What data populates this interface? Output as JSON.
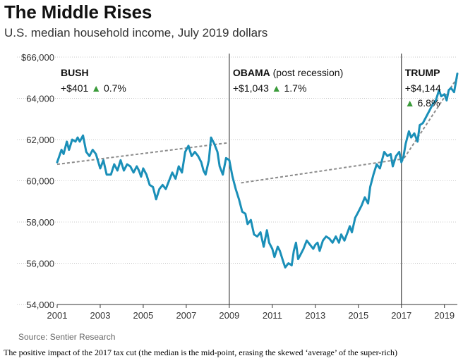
{
  "header": {
    "title": "The Middle Rises",
    "subtitle": "U.S. median household income, July 2019 dollars"
  },
  "source": "Source: Sentier Research",
  "caption": "The positive impact of the 2017 tax cut (the median is the mid-point, erasing the skewed ‘average’ of the super-rich)",
  "colors": {
    "line": "#1a8fb8",
    "trend": "#8c8c8c",
    "arrow": "#3a9b3a",
    "grid": "#c8c8c8",
    "divider": "#444444"
  },
  "eras": [
    {
      "name": "BUSH",
      "note": "",
      "change": "+$401",
      "arrow": "▲",
      "pct": "0.7%",
      "start": 2001.0,
      "end": 2009.0
    },
    {
      "name": "OBAMA",
      "note": " (post recession)",
      "change": "+$1,043",
      "arrow": "▲",
      "pct": "1.7%",
      "start": 2009.0,
      "end": 2017.0
    },
    {
      "name": "TRUMP",
      "note": "",
      "change": "+$4,144",
      "arrow": "▲",
      "pct": "6.8%",
      "start": 2017.0,
      "end": 2019.6
    }
  ],
  "chart_data": {
    "type": "line",
    "title": "The Middle Rises",
    "subtitle": "U.S. median household income, July 2019 dollars",
    "xlabel": "",
    "ylabel": "",
    "xlim": [
      2001,
      2019.6
    ],
    "ylim": [
      54000,
      66000
    ],
    "x_ticks": [
      2001,
      2003,
      2005,
      2007,
      2009,
      2011,
      2013,
      2015,
      2017,
      2019
    ],
    "y_ticks": [
      54000,
      56000,
      58000,
      60000,
      62000,
      64000,
      66000
    ],
    "y_tick_labels": [
      "54,000",
      "56,000",
      "58,000",
      "60,000",
      "62,000",
      "64,000",
      "$66,000"
    ],
    "grid": "horizontal",
    "dividers": [
      2009,
      2017
    ],
    "series": [
      {
        "values": [
          [
            2001.0,
            60900
          ],
          [
            2001.2,
            61500
          ],
          [
            2001.3,
            61300
          ],
          [
            2001.45,
            61900
          ],
          [
            2001.55,
            61500
          ],
          [
            2001.7,
            62000
          ],
          [
            2001.85,
            61900
          ],
          [
            2001.95,
            62100
          ],
          [
            2002.05,
            61900
          ],
          [
            2002.2,
            62200
          ],
          [
            2002.35,
            61400
          ],
          [
            2002.5,
            61200
          ],
          [
            2002.65,
            61500
          ],
          [
            2002.8,
            61300
          ],
          [
            2003.0,
            60600
          ],
          [
            2003.15,
            61000
          ],
          [
            2003.3,
            60300
          ],
          [
            2003.5,
            60300
          ],
          [
            2003.65,
            60800
          ],
          [
            2003.8,
            60500
          ],
          [
            2003.95,
            61000
          ],
          [
            2004.1,
            60500
          ],
          [
            2004.25,
            60800
          ],
          [
            2004.4,
            60700
          ],
          [
            2004.55,
            60400
          ],
          [
            2004.7,
            60700
          ],
          [
            2004.8,
            60500
          ],
          [
            2004.9,
            60200
          ],
          [
            2005.0,
            60600
          ],
          [
            2005.15,
            60300
          ],
          [
            2005.3,
            59800
          ],
          [
            2005.45,
            59700
          ],
          [
            2005.6,
            59100
          ],
          [
            2005.75,
            59600
          ],
          [
            2005.9,
            59800
          ],
          [
            2006.05,
            59600
          ],
          [
            2006.2,
            60000
          ],
          [
            2006.35,
            60400
          ],
          [
            2006.5,
            60100
          ],
          [
            2006.65,
            60700
          ],
          [
            2006.8,
            60400
          ],
          [
            2006.95,
            61400
          ],
          [
            2007.1,
            61700
          ],
          [
            2007.25,
            61200
          ],
          [
            2007.4,
            61400
          ],
          [
            2007.55,
            61200
          ],
          [
            2007.7,
            60900
          ],
          [
            2007.8,
            60500
          ],
          [
            2007.9,
            60300
          ],
          [
            2008.05,
            61000
          ],
          [
            2008.15,
            62100
          ],
          [
            2008.3,
            61800
          ],
          [
            2008.45,
            61400
          ],
          [
            2008.55,
            60700
          ],
          [
            2008.7,
            60300
          ],
          [
            2008.85,
            61100
          ],
          [
            2009.0,
            61000
          ],
          [
            2009.15,
            60200
          ],
          [
            2009.3,
            59600
          ],
          [
            2009.45,
            59100
          ],
          [
            2009.6,
            58500
          ],
          [
            2009.75,
            58400
          ],
          [
            2009.85,
            57900
          ],
          [
            2010.0,
            58100
          ],
          [
            2010.15,
            57400
          ],
          [
            2010.3,
            57300
          ],
          [
            2010.45,
            57500
          ],
          [
            2010.6,
            56800
          ],
          [
            2010.75,
            57600
          ],
          [
            2010.85,
            57000
          ],
          [
            2011.0,
            56700
          ],
          [
            2011.1,
            56300
          ],
          [
            2011.25,
            56800
          ],
          [
            2011.35,
            56600
          ],
          [
            2011.5,
            56100
          ],
          [
            2011.6,
            55800
          ],
          [
            2011.75,
            56000
          ],
          [
            2011.9,
            55900
          ],
          [
            2012.0,
            56600
          ],
          [
            2012.1,
            57000
          ],
          [
            2012.2,
            56200
          ],
          [
            2012.3,
            56400
          ],
          [
            2012.45,
            56700
          ],
          [
            2012.6,
            57100
          ],
          [
            2012.75,
            56900
          ],
          [
            2012.9,
            56700
          ],
          [
            2013.0,
            56900
          ],
          [
            2013.1,
            57000
          ],
          [
            2013.2,
            56600
          ],
          [
            2013.35,
            57100
          ],
          [
            2013.5,
            57300
          ],
          [
            2013.65,
            57200
          ],
          [
            2013.8,
            57000
          ],
          [
            2013.95,
            57300
          ],
          [
            2014.1,
            57000
          ],
          [
            2014.2,
            57400
          ],
          [
            2014.35,
            57100
          ],
          [
            2014.5,
            57500
          ],
          [
            2014.6,
            57800
          ],
          [
            2014.7,
            57500
          ],
          [
            2014.85,
            58200
          ],
          [
            2015.0,
            58500
          ],
          [
            2015.15,
            58800
          ],
          [
            2015.3,
            59200
          ],
          [
            2015.45,
            58900
          ],
          [
            2015.55,
            59700
          ],
          [
            2015.7,
            60300
          ],
          [
            2015.85,
            60800
          ],
          [
            2016.0,
            60600
          ],
          [
            2016.1,
            61000
          ],
          [
            2016.2,
            61400
          ],
          [
            2016.35,
            61200
          ],
          [
            2016.5,
            61300
          ],
          [
            2016.6,
            60700
          ],
          [
            2016.75,
            61200
          ],
          [
            2016.9,
            61400
          ],
          [
            2017.0,
            60900
          ],
          [
            2017.1,
            61200
          ],
          [
            2017.2,
            61800
          ],
          [
            2017.35,
            62400
          ],
          [
            2017.45,
            62100
          ],
          [
            2017.6,
            62300
          ],
          [
            2017.75,
            61900
          ],
          [
            2017.85,
            62700
          ],
          [
            2018.0,
            62800
          ],
          [
            2018.15,
            63100
          ],
          [
            2018.3,
            63400
          ],
          [
            2018.45,
            63700
          ],
          [
            2018.6,
            63900
          ],
          [
            2018.75,
            64400
          ],
          [
            2018.85,
            64100
          ],
          [
            2019.0,
            64200
          ],
          [
            2019.1,
            63900
          ],
          [
            2019.2,
            64400
          ],
          [
            2019.3,
            64500
          ],
          [
            2019.45,
            64300
          ],
          [
            2019.6,
            65200
          ]
        ]
      }
    ],
    "trend_lines": [
      {
        "from": [
          2001.0,
          60800
        ],
        "to": [
          2009.0,
          61850
        ]
      },
      {
        "from": [
          2009.55,
          59900
        ],
        "to": [
          2017.0,
          61050
        ]
      },
      {
        "from": [
          2017.0,
          60900
        ],
        "to": [
          2019.6,
          65000
        ]
      }
    ]
  }
}
